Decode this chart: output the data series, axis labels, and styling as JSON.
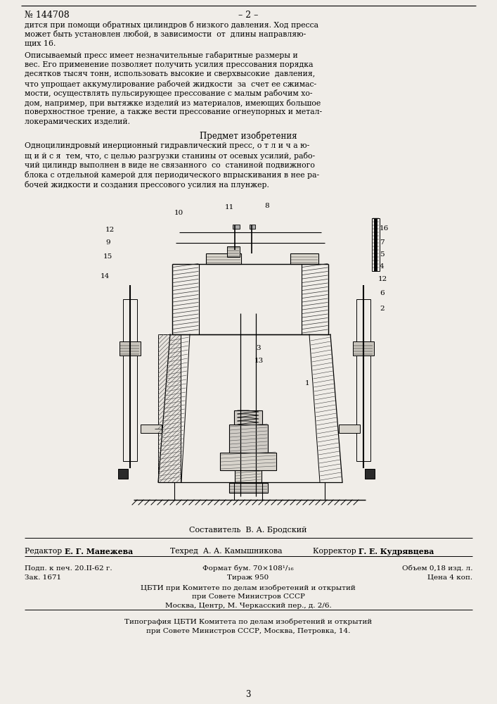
{
  "bg_color": "#f0ede8",
  "page_number_left": "№ 144708",
  "page_number_center": "– 2 –",
  "page_bottom": "3",
  "body_text_1": "дится при помощи обратных цилиндров б низкого давления. Ход пресса\nможет быть установлен любой, в зависимости  от  длины направляю-\nщих 16.",
  "body_text_2": "Описываемый пресс имеет незначительные габаритные размеры и\nвес. Его применение позволяет получить усилия прессования порядка\nдесятков тысяч тонн, использовать высокие и сверхвысокие  давления,\nчто упрощает аккумулирование рабочей жидкости  за  счет ее сжимас-\nмости, осуществлять пульсирующее прессование с малым рабочим хо-\nдом, например, при вытяжке изделий из материалов, имеющих большое\nповерхностное трение, а также вести прессование огнеупорных и метал-\nлокерамических изделий.",
  "section_title": "Предмет изобретения",
  "patent_text": "Одноцилиндровый инерционный гидравлический пресс, о т л и ч а ю-\nщ и й с я  тем, что, с целью разгрузки станины от осевых усилий, рабо-\nчий цилиндр выполнен в виде не связанного  со  станиной подвижного\nблока с отдельной камерой для периодического впрыскивания в нее ра-\nбочей жидкости и создания прессового усилия на плунжер.",
  "составитель": "Составитель  В. А. Бродский",
  "info_line1_left": "Подп. к печ. 20.II-62 г.",
  "info_line1_center": "Формат бум. 70×108¹/₁₆",
  "info_line1_right": "Объем 0,18 изд. л.",
  "info_line2_left": "Зак. 1671",
  "info_line2_center": "Тираж 950",
  "info_line2_right": "Цена 4 коп.",
  "cbti_line1": "ЦБТИ при Комитете по делам изобретений и открытий",
  "cbti_line2": "при Совете Министров СССР",
  "cbti_line3": "Москва, Центр, М. Черкасский пер., д. 2/6.",
  "print_line1": "Типография ЦБТИ Комитета по делам изобретений и открытий",
  "print_line2": "при Совете Министров СССР, Москва, Петровка, 14.",
  "draw_labels": [
    [
      148,
      332,
      "12"
    ],
    [
      148,
      348,
      "9"
    ],
    [
      148,
      368,
      "15"
    ],
    [
      145,
      392,
      "14"
    ],
    [
      540,
      326,
      "16"
    ],
    [
      540,
      342,
      "7"
    ],
    [
      540,
      358,
      "5"
    ],
    [
      540,
      374,
      "4"
    ],
    [
      540,
      393,
      "12"
    ],
    [
      540,
      412,
      "6"
    ],
    [
      540,
      432,
      "2"
    ],
    [
      248,
      305,
      "10"
    ],
    [
      330,
      295,
      "11"
    ],
    [
      375,
      292,
      "8"
    ],
    [
      365,
      450,
      "3"
    ],
    [
      365,
      468,
      "13"
    ],
    [
      430,
      502,
      "1"
    ]
  ]
}
